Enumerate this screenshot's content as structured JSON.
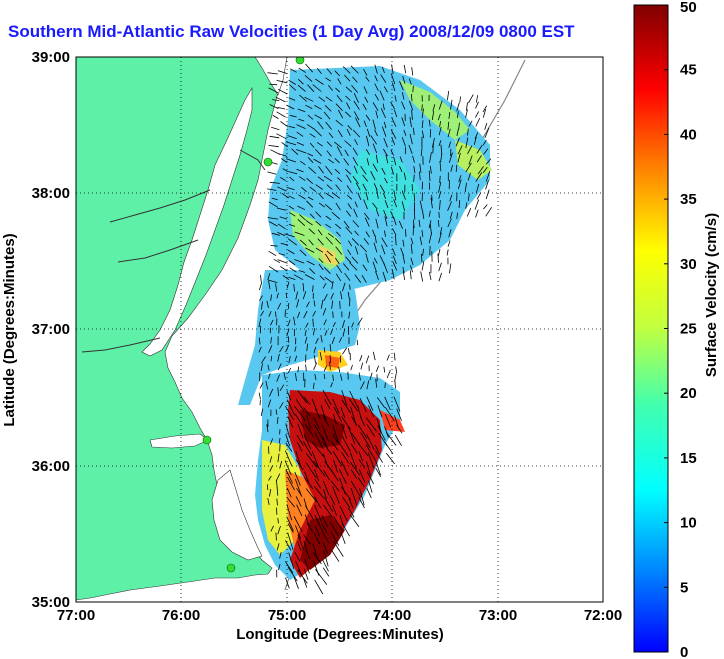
{
  "title": "Southern Mid-Atlantic Raw Velocities (1 Day Avg) 2008/12/09 0800 EST",
  "map": {
    "xlabel": "Longitude (Degrees:Minutes)",
    "ylabel": "Latitude (Degrees:Minutes)",
    "x_ticks": [
      "77:00",
      "76:00",
      "75:00",
      "74:00",
      "73:00",
      "72:00"
    ],
    "y_ticks": [
      "39:00",
      "38:00",
      "37:00",
      "36:00",
      "35:00"
    ],
    "lon_range": [
      -77,
      -72
    ],
    "lat_range": [
      35,
      39
    ],
    "grid": true,
    "land_color": "#5ff0a8",
    "water_color": "#ffffff",
    "station_color": "#33dd33"
  },
  "colorbar": {
    "label": "Surface Velocity (cm/s)",
    "ticks": [
      "0",
      "5",
      "10",
      "15",
      "20",
      "25",
      "30",
      "35",
      "40",
      "45",
      "50"
    ],
    "range": [
      0,
      50
    ],
    "colormap": "jet"
  }
}
